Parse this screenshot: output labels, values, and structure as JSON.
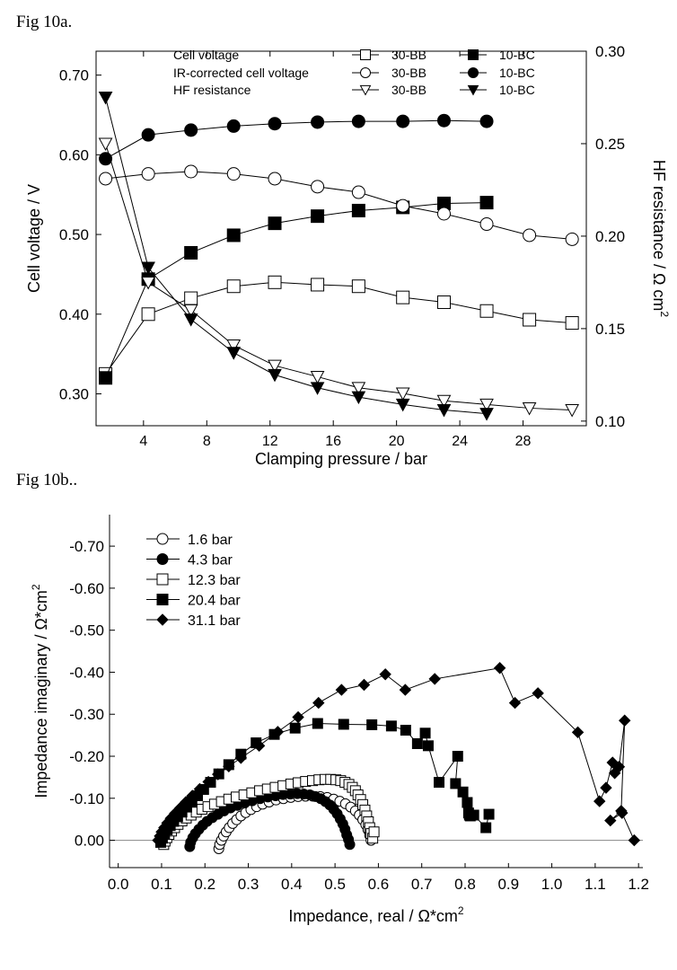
{
  "figures": {
    "a_label": "Fig 10a.",
    "b_label": "Fig 10b.."
  },
  "chart_data": [
    {
      "type": "line",
      "title": "",
      "xlabel": "Clamping pressure / bar",
      "ylabel": "Cell voltage / V",
      "y2label": "HF resistance  / Ω cm",
      "y2label_sup": "2",
      "xlim": [
        1,
        32
      ],
      "ylim": [
        0.26,
        0.73
      ],
      "y2lim": [
        0.0975,
        0.3
      ],
      "xticks": [
        4,
        8,
        12,
        16,
        20,
        24,
        28
      ],
      "xtick_labels": [
        "4",
        "8",
        "12",
        "16",
        "20",
        "24",
        "28"
      ],
      "yticks": [
        0.3,
        0.4,
        0.5,
        0.6,
        0.7
      ],
      "ytick_labels": [
        "0.30",
        "0.40",
        "0.50",
        "0.60",
        "0.70"
      ],
      "y2ticks": [
        0.1,
        0.15,
        0.2,
        0.25,
        0.3
      ],
      "y2tick_labels": [
        "0.10",
        "0.15",
        "0.20",
        "0.25",
        "0.30"
      ],
      "legend_rows": [
        "Cell voltage",
        "IR-corrected cell voltage",
        "HF resistance"
      ],
      "series": [
        {
          "name": "30-BB",
          "group": "Cell voltage",
          "marker": "square-open",
          "axis": "left",
          "x": [
            1.6,
            4.3,
            7.0,
            9.7,
            12.3,
            15.0,
            17.6,
            20.4,
            23.0,
            25.7,
            28.4,
            31.1
          ],
          "values": [
            0.325,
            0.4,
            0.42,
            0.435,
            0.44,
            0.437,
            0.435,
            0.421,
            0.415,
            0.404,
            0.393,
            0.389
          ]
        },
        {
          "name": "10-BC",
          "group": "Cell voltage",
          "marker": "square-filled",
          "axis": "left",
          "x": [
            1.6,
            4.3,
            7.0,
            9.7,
            12.3,
            15.0,
            17.6,
            20.4,
            23.0,
            25.7
          ],
          "values": [
            0.32,
            0.444,
            0.477,
            0.499,
            0.514,
            0.523,
            0.53,
            0.534,
            0.539,
            0.54
          ]
        },
        {
          "name": "30-BB",
          "group": "IR-corrected cell voltage",
          "marker": "circle-open",
          "axis": "left",
          "x": [
            1.6,
            4.3,
            7.0,
            9.7,
            12.3,
            15.0,
            17.6,
            20.4,
            23.0,
            25.7,
            28.4,
            31.1
          ],
          "values": [
            0.57,
            0.576,
            0.579,
            0.576,
            0.57,
            0.56,
            0.553,
            0.536,
            0.526,
            0.513,
            0.499,
            0.494
          ]
        },
        {
          "name": "10-BC",
          "group": "IR-corrected cell voltage",
          "marker": "circle-filled",
          "axis": "left",
          "x": [
            1.6,
            4.3,
            7.0,
            9.7,
            12.3,
            15.0,
            17.6,
            20.4,
            23.0,
            25.7
          ],
          "values": [
            0.595,
            0.625,
            0.631,
            0.636,
            0.639,
            0.641,
            0.642,
            0.642,
            0.643,
            0.642
          ]
        },
        {
          "name": "30-BB",
          "group": "HF resistance",
          "marker": "triangle-open",
          "axis": "right",
          "x": [
            1.6,
            4.3,
            7.0,
            9.7,
            12.3,
            15.0,
            17.6,
            20.4,
            23.0,
            25.7,
            28.4,
            31.1
          ],
          "values": [
            0.25,
            0.175,
            0.16,
            0.141,
            0.13,
            0.124,
            0.118,
            0.115,
            0.111,
            0.109,
            0.107,
            0.106
          ]
        },
        {
          "name": "10-BC",
          "group": "HF resistance",
          "marker": "triangle-filled",
          "axis": "right",
          "x": [
            1.6,
            4.3,
            7.0,
            9.7,
            12.3,
            15.0,
            17.6,
            20.4,
            23.0,
            25.7
          ],
          "values": [
            0.275,
            0.183,
            0.155,
            0.137,
            0.125,
            0.118,
            0.113,
            0.109,
            0.106,
            0.104
          ]
        }
      ]
    },
    {
      "type": "scatter",
      "title": "",
      "xlabel": "Impedance, real / Ω*cm",
      "xlabel_sup": "2",
      "ylabel": "Impedance imaginary / Ω*cm",
      "ylabel_sup": "2",
      "xlim": [
        -0.02,
        1.21
      ],
      "ylim": [
        0.065,
        -0.775
      ],
      "xticks": [
        0.0,
        0.1,
        0.2,
        0.3,
        0.4,
        0.5,
        0.6,
        0.7,
        0.8,
        0.9,
        1.0,
        1.1,
        1.2
      ],
      "xtick_labels": [
        "0.0",
        "0.1",
        "0.2",
        "0.3",
        "0.4",
        "0.5",
        "0.6",
        "0.7",
        "0.8",
        "0.9",
        "1.0",
        "1.1",
        "1.2"
      ],
      "yticks": [
        0.0,
        -0.1,
        -0.2,
        -0.3,
        -0.4,
        -0.5,
        -0.6,
        -0.7
      ],
      "ytick_labels": [
        "0.00",
        "-0.10",
        "-0.20",
        "-0.30",
        "-0.40",
        "-0.50",
        "-0.60",
        "-0.70"
      ],
      "series": [
        {
          "name": "1.6 bar",
          "marker": "circle-open",
          "x": [
            0.232,
            0.234,
            0.238,
            0.243,
            0.249,
            0.256,
            0.264,
            0.273,
            0.283,
            0.294,
            0.306,
            0.319,
            0.333,
            0.348,
            0.364,
            0.381,
            0.398,
            0.415,
            0.432,
            0.449,
            0.466,
            0.482,
            0.497,
            0.511,
            0.524,
            0.536,
            0.547,
            0.556,
            0.564,
            0.571,
            0.576,
            0.58,
            0.583
          ],
          "y": [
            0.02,
            0.01,
            0.0,
            -0.01,
            -0.02,
            -0.03,
            -0.04,
            -0.049,
            -0.058,
            -0.066,
            -0.073,
            -0.08,
            -0.086,
            -0.091,
            -0.096,
            -0.099,
            -0.102,
            -0.104,
            -0.105,
            -0.105,
            -0.104,
            -0.102,
            -0.098,
            -0.093,
            -0.087,
            -0.079,
            -0.07,
            -0.06,
            -0.049,
            -0.037,
            -0.025,
            -0.012,
            0.0
          ]
        },
        {
          "name": "4.3 bar",
          "marker": "circle-filled",
          "x": [
            0.165,
            0.167,
            0.172,
            0.178,
            0.186,
            0.195,
            0.205,
            0.217,
            0.23,
            0.244,
            0.259,
            0.275,
            0.292,
            0.309,
            0.327,
            0.345,
            0.363,
            0.38,
            0.397,
            0.413,
            0.428,
            0.442,
            0.455,
            0.467,
            0.478,
            0.488,
            0.497,
            0.505,
            0.512,
            0.518,
            0.523,
            0.527,
            0.531,
            0.534
          ],
          "y": [
            0.015,
            0.005,
            -0.006,
            -0.016,
            -0.026,
            -0.036,
            -0.045,
            -0.054,
            -0.062,
            -0.07,
            -0.077,
            -0.083,
            -0.089,
            -0.094,
            -0.099,
            -0.103,
            -0.106,
            -0.109,
            -0.11,
            -0.111,
            -0.11,
            -0.108,
            -0.104,
            -0.099,
            -0.092,
            -0.084,
            -0.074,
            -0.063,
            -0.051,
            -0.039,
            -0.026,
            -0.013,
            -0.002,
            0.01
          ]
        },
        {
          "name": "12.3 bar",
          "marker": "square-open",
          "x": [
            0.105,
            0.108,
            0.112,
            0.117,
            0.123,
            0.13,
            0.138,
            0.147,
            0.157,
            0.168,
            0.18,
            0.193,
            0.207,
            0.222,
            0.238,
            0.255,
            0.272,
            0.29,
            0.308,
            0.326,
            0.344,
            0.362,
            0.38,
            0.398,
            0.415,
            0.432,
            0.448,
            0.463,
            0.477,
            0.49,
            0.502,
            0.513,
            0.523,
            0.532,
            0.54,
            0.547,
            0.553,
            0.559,
            0.564,
            0.569,
            0.573,
            0.577,
            0.58,
            0.583,
            0.587,
            0.59
          ],
          "y": [
            0.01,
            0.002,
            -0.006,
            -0.014,
            -0.022,
            -0.03,
            -0.038,
            -0.046,
            -0.053,
            -0.06,
            -0.067,
            -0.074,
            -0.08,
            -0.086,
            -0.092,
            -0.098,
            -0.103,
            -0.108,
            -0.113,
            -0.118,
            -0.122,
            -0.126,
            -0.13,
            -0.134,
            -0.137,
            -0.14,
            -0.142,
            -0.144,
            -0.145,
            -0.145,
            -0.144,
            -0.142,
            -0.138,
            -0.133,
            -0.126,
            -0.118,
            -0.108,
            -0.097,
            -0.085,
            -0.072,
            -0.058,
            -0.044,
            -0.03,
            -0.016,
            -0.005,
            -0.02
          ]
        },
        {
          "name": "20.4 bar",
          "marker": "square-filled",
          "x": [
            0.098,
            0.102,
            0.107,
            0.113,
            0.12,
            0.128,
            0.137,
            0.147,
            0.158,
            0.17,
            0.183,
            0.197,
            0.213,
            0.232,
            0.255,
            0.283,
            0.318,
            0.36,
            0.408,
            0.46,
            0.52,
            0.585,
            0.63,
            0.663,
            0.69,
            0.708,
            0.715,
            0.74,
            0.783,
            0.778,
            0.795,
            0.805,
            0.81,
            0.812,
            0.808,
            0.82,
            0.848,
            0.855
          ],
          "y": [
            0.005,
            -0.005,
            -0.015,
            -0.025,
            -0.035,
            -0.045,
            -0.056,
            -0.067,
            -0.079,
            -0.092,
            -0.106,
            -0.121,
            -0.138,
            -0.158,
            -0.18,
            -0.205,
            -0.232,
            -0.252,
            -0.267,
            -0.278,
            -0.276,
            -0.275,
            -0.272,
            -0.262,
            -0.23,
            -0.255,
            -0.225,
            -0.138,
            -0.2,
            -0.135,
            -0.115,
            -0.09,
            -0.06,
            -0.058,
            -0.065,
            -0.06,
            -0.03,
            -0.062
          ]
        },
        {
          "name": "31.1 bar",
          "marker": "diamond-filled",
          "x": [
            0.092,
            0.096,
            0.1,
            0.106,
            0.113,
            0.121,
            0.131,
            0.143,
            0.156,
            0.171,
            0.188,
            0.208,
            0.23,
            0.255,
            0.283,
            0.325,
            0.368,
            0.415,
            0.462,
            0.515,
            0.567,
            0.616,
            0.662,
            0.73,
            0.88,
            0.915,
            0.968,
            1.06,
            1.11,
            1.125,
            1.14,
            1.145,
            1.155,
            1.168,
            1.16,
            1.135,
            1.162,
            1.19
          ],
          "y": [
            0.0,
            -0.01,
            -0.02,
            -0.03,
            -0.041,
            -0.052,
            -0.064,
            -0.077,
            -0.091,
            -0.106,
            -0.122,
            -0.139,
            -0.157,
            -0.176,
            -0.196,
            -0.225,
            -0.258,
            -0.293,
            -0.327,
            -0.358,
            -0.37,
            -0.395,
            -0.358,
            -0.384,
            -0.41,
            -0.327,
            -0.35,
            -0.257,
            -0.093,
            -0.125,
            -0.185,
            -0.16,
            -0.175,
            -0.285,
            -0.07,
            -0.047,
            -0.065,
            0.0
          ]
        }
      ]
    }
  ]
}
